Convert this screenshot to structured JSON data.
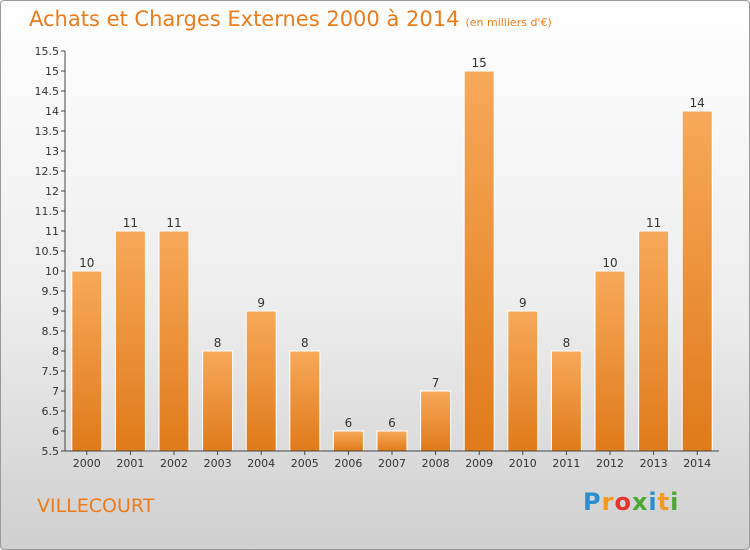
{
  "title": "Achats et Charges Externes 2000 à 2014",
  "unit_note": "(en milliers d'€)",
  "commune": "VILLECOURT",
  "logo": {
    "letters": [
      "P",
      "r",
      "o",
      "x",
      "i",
      "t",
      "i"
    ],
    "colors": [
      "#2a8fd0",
      "#f39a1e",
      "#e8322e",
      "#4aa832",
      "#2a8fd0",
      "#f39a1e",
      "#4aa832"
    ]
  },
  "colors": {
    "bar_top": "#f7a95a",
    "bar_bottom": "#e07a1a",
    "title": "#ee7b1a"
  },
  "chart_data": {
    "type": "bar",
    "title": "Achats et Charges Externes 2000 à 2014",
    "categories": [
      "2000",
      "2001",
      "2002",
      "2003",
      "2004",
      "2005",
      "2006",
      "2007",
      "2008",
      "2009",
      "2010",
      "2011",
      "2012",
      "2013",
      "2014"
    ],
    "values": [
      10,
      11,
      11,
      8,
      9,
      8,
      6,
      6,
      7,
      15,
      9,
      8,
      10,
      11,
      14
    ],
    "data_labels": [
      "10",
      "11",
      "11",
      "8",
      "9",
      "8",
      "6",
      "6",
      "7",
      "15",
      "9",
      "8",
      "10",
      "11",
      "14"
    ],
    "ylim": [
      5.5,
      15.5
    ],
    "yticks": [
      "5.5",
      "6",
      "6.5",
      "7",
      "7.5",
      "8",
      "8.5",
      "9",
      "9.5",
      "10",
      "10.5",
      "11",
      "11.5",
      "12",
      "12.5",
      "13",
      "13.5",
      "14",
      "14.5",
      "15",
      "15.5"
    ],
    "grid": false,
    "legend": "none"
  }
}
